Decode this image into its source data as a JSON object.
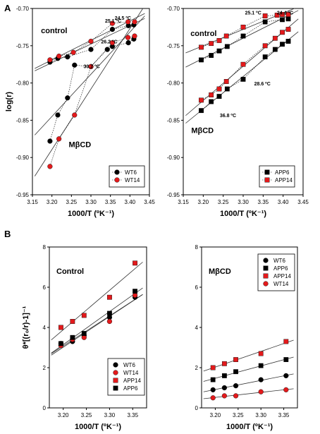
{
  "chart_data": [
    {
      "panel_label": "A",
      "type": "scatter",
      "xlabel": "1000/T (ºK⁻¹)",
      "ylabel": "log(r)",
      "xlim": [
        3.15,
        3.45
      ],
      "ylim": [
        -0.95,
        -0.7
      ],
      "xticks": [
        "3.15",
        "3.20",
        "3.25",
        "3.30",
        "3.35",
        "3.40",
        "3.45"
      ],
      "yticks": [
        "-0.70",
        "-0.75",
        "-0.80",
        "-0.85",
        "-0.90",
        "-0.95"
      ],
      "legend_position": "bottom-right",
      "group_labels": [
        {
          "text": "control",
          "x": 3.172,
          "y": -0.733
        },
        {
          "text": "MβCD",
          "x": 3.243,
          "y": -0.886
        }
      ],
      "annotations": [
        {
          "text": "25.1 ºC",
          "x": 3.357,
          "y": -0.719
        },
        {
          "text": "24.5 ºC",
          "x": 3.382,
          "y": -0.715
        },
        {
          "text": "26.2 ºC",
          "x": 3.347,
          "y": -0.747
        },
        {
          "text": "30.2 ºC",
          "x": 3.302,
          "y": -0.78
        }
      ],
      "series": [
        {
          "name": "WT6",
          "marker": "circle",
          "color": "#000000",
          "x": [
            3.195,
            3.215,
            3.24,
            3.258,
            3.3,
            3.342,
            3.355,
            3.396,
            3.41
          ],
          "y": [
            -0.878,
            -0.843,
            -0.82,
            -0.776,
            -0.778,
            -0.755,
            -0.751,
            -0.746,
            -0.741
          ],
          "x2": [
            3.195,
            3.215,
            3.24,
            3.3,
            3.355,
            3.396,
            3.41
          ],
          "y2": [
            -0.772,
            -0.767,
            -0.765,
            -0.755,
            -0.728,
            -0.723,
            -0.722
          ]
        },
        {
          "name": "WT14",
          "marker": "circle",
          "color": "#e31a1c",
          "x": [
            3.195,
            3.218,
            3.258,
            3.3,
            3.355,
            3.395,
            3.412
          ],
          "y": [
            -0.912,
            -0.875,
            -0.843,
            -0.778,
            -0.746,
            -0.739,
            -0.737
          ],
          "x2": [
            3.195,
            3.218,
            3.255,
            3.3,
            3.355,
            3.395,
            3.412
          ],
          "y2": [
            -0.769,
            -0.764,
            -0.759,
            -0.744,
            -0.72,
            -0.718,
            -0.718
          ]
        }
      ]
    },
    {
      "panel_label": "",
      "type": "scatter",
      "xlabel": "1000/T (ºK⁻¹)",
      "ylabel": "",
      "xlim": [
        3.15,
        3.45
      ],
      "ylim": [
        -0.95,
        -0.7
      ],
      "xticks": [
        "3.15",
        "3.20",
        "3.25",
        "3.30",
        "3.35",
        "3.40",
        "3.45"
      ],
      "yticks": [
        "-0.70",
        "-0.75",
        "-0.80",
        "-0.85",
        "-0.90",
        "-0.95"
      ],
      "legend_position": "bottom-right",
      "group_labels": [
        {
          "text": "control",
          "x": 3.168,
          "y": -0.737
        },
        {
          "text": "MβCD",
          "x": 3.17,
          "y": -0.867
        }
      ],
      "annotations": [
        {
          "text": "25.1 ºC",
          "x": 3.325,
          "y": -0.708
        },
        {
          "text": "24.4 ºC",
          "x": 3.405,
          "y": -0.708
        },
        {
          "text": "28.6 ºC",
          "x": 3.348,
          "y": -0.803
        },
        {
          "text": "36.8 ºC",
          "x": 3.262,
          "y": -0.846
        }
      ],
      "series": [
        {
          "name": "APP6",
          "marker": "square",
          "color": "#000000",
          "x": [
            3.195,
            3.22,
            3.24,
            3.26,
            3.3,
            3.355,
            3.38,
            3.398,
            3.413
          ],
          "y": [
            -0.837,
            -0.825,
            -0.818,
            -0.808,
            -0.795,
            -0.765,
            -0.755,
            -0.748,
            -0.744
          ],
          "x2": [
            3.195,
            3.22,
            3.24,
            3.26,
            3.3,
            3.355,
            3.398,
            3.413
          ],
          "y2": [
            -0.769,
            -0.763,
            -0.757,
            -0.751,
            -0.737,
            -0.718,
            -0.715,
            -0.714
          ]
        },
        {
          "name": "APP14",
          "marker": "square",
          "color": "#e31a1c",
          "x": [
            3.195,
            3.22,
            3.24,
            3.258,
            3.3,
            3.355,
            3.38,
            3.398,
            3.413
          ],
          "y": [
            -0.823,
            -0.816,
            -0.808,
            -0.798,
            -0.775,
            -0.75,
            -0.74,
            -0.732,
            -0.728
          ],
          "x2": [
            3.195,
            3.22,
            3.24,
            3.258,
            3.3,
            3.355,
            3.385,
            3.398,
            3.413
          ],
          "y2": [
            -0.752,
            -0.747,
            -0.743,
            -0.737,
            -0.725,
            -0.71,
            -0.709,
            -0.708,
            -0.708
          ]
        }
      ]
    },
    {
      "panel_label": "B",
      "type": "scatter",
      "title": "Control",
      "xlabel": "1000/T (ºK⁻¹)",
      "ylabel": "θ*[(r₀/r)-1]⁻¹",
      "xlim": [
        3.17,
        3.38
      ],
      "ylim": [
        0,
        8
      ],
      "xticks": [
        "3.20",
        "3.25",
        "3.30",
        "3.35"
      ],
      "yticks": [
        "0",
        "2",
        "4",
        "6",
        "8"
      ],
      "legend_position": "bottom-right",
      "series": [
        {
          "name": "WT6",
          "marker": "circle",
          "color": "#000000",
          "x": [
            3.195,
            3.22,
            3.245,
            3.3,
            3.355
          ],
          "y": [
            3.2,
            3.3,
            3.6,
            4.5,
            5.5
          ]
        },
        {
          "name": "WT14",
          "marker": "circle",
          "color": "#e31a1c",
          "x": [
            3.195,
            3.22,
            3.245,
            3.3,
            3.355
          ],
          "y": [
            3.1,
            3.4,
            3.5,
            4.3,
            5.6
          ]
        },
        {
          "name": "APP14",
          "marker": "square",
          "color": "#e31a1c",
          "x": [
            3.195,
            3.22,
            3.245,
            3.3,
            3.355
          ],
          "y": [
            4.0,
            4.3,
            4.6,
            5.5,
            7.2
          ]
        },
        {
          "name": "APP6",
          "marker": "square",
          "color": "#000000",
          "x": [
            3.195,
            3.22,
            3.245,
            3.3,
            3.355
          ],
          "y": [
            3.2,
            3.5,
            3.7,
            4.7,
            5.8
          ]
        }
      ]
    },
    {
      "panel_label": "",
      "type": "scatter",
      "title": "MβCD",
      "xlabel": "1000/T (ºK⁻¹)",
      "ylabel": "",
      "xlim": [
        3.17,
        3.38
      ],
      "ylim": [
        0,
        8
      ],
      "xticks": [
        "3.20",
        "3.25",
        "3.30",
        "3.35"
      ],
      "yticks": [
        "0",
        "2",
        "4",
        "6",
        "8"
      ],
      "legend_position": "top-right",
      "series": [
        {
          "name": "WT6",
          "marker": "circle",
          "color": "#000000",
          "x": [
            3.195,
            3.22,
            3.245,
            3.3,
            3.355
          ],
          "y": [
            0.9,
            1.0,
            1.1,
            1.4,
            1.6
          ]
        },
        {
          "name": "APP6",
          "marker": "square",
          "color": "#000000",
          "x": [
            3.195,
            3.22,
            3.245,
            3.3,
            3.355
          ],
          "y": [
            1.4,
            1.6,
            1.8,
            2.1,
            2.4
          ]
        },
        {
          "name": "APP14",
          "marker": "square",
          "color": "#e31a1c",
          "x": [
            3.195,
            3.22,
            3.245,
            3.3,
            3.355
          ],
          "y": [
            2.0,
            2.2,
            2.4,
            2.7,
            3.3
          ]
        },
        {
          "name": "WT14",
          "marker": "circle",
          "color": "#e31a1c",
          "x": [
            3.195,
            3.22,
            3.245,
            3.3,
            3.355
          ],
          "y": [
            0.5,
            0.6,
            0.6,
            0.8,
            0.9
          ]
        }
      ]
    }
  ]
}
